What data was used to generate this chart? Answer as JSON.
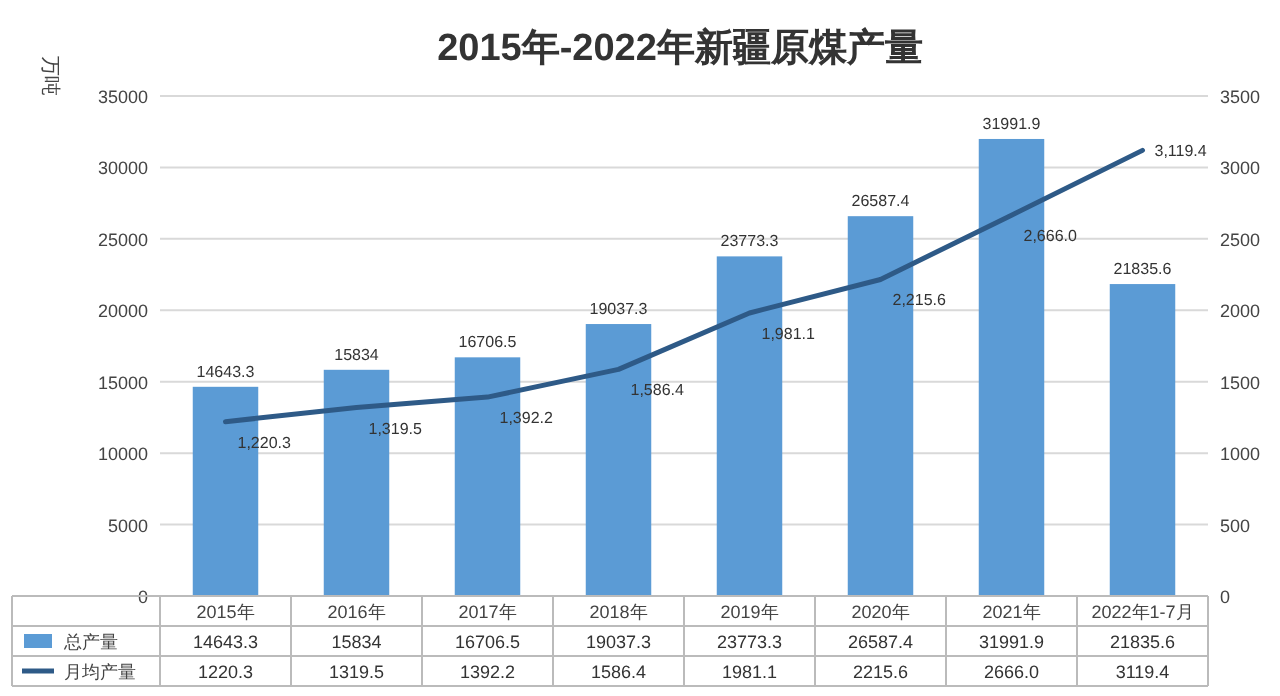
{
  "chart_data": {
    "type": "bar",
    "title": "2015年-2022年新疆原煤产量",
    "ylabel": "万吨",
    "categories": [
      "2015年",
      "2016年",
      "2017年",
      "2018年",
      "2019年",
      "2020年",
      "2021年",
      "2022年1-7月"
    ],
    "series": [
      {
        "name": "总产量",
        "color": "#5b9bd5",
        "values": [
          14643.3,
          15834,
          16706.5,
          19037.3,
          23773.3,
          26587.4,
          31991.9,
          21835.6
        ],
        "value_labels": [
          "14643.3",
          "15834",
          "16706.5",
          "19037.3",
          "23773.3",
          "26587.4",
          "31991.9",
          "21835.6"
        ]
      },
      {
        "name": "月均产量",
        "type": "line",
        "axis": "y2",
        "color": "#2e5a87",
        "values": [
          1220.3,
          1319.5,
          1392.2,
          1586.4,
          1981.1,
          2215.6,
          2666.0,
          3119.4
        ],
        "value_labels": [
          "1,220.3",
          "1,319.5",
          "1,392.2",
          "1,586.4",
          "1,981.1",
          "2,215.6",
          "2,666.0",
          "3,119.4"
        ]
      }
    ],
    "ylim": [
      0,
      35000
    ],
    "yticks": [
      0,
      5000,
      10000,
      15000,
      20000,
      25000,
      30000,
      35000
    ],
    "y2lim": [
      0,
      3500
    ],
    "y2ticks": [
      0,
      500,
      1000,
      1500,
      2000,
      2500,
      3000,
      3500
    ],
    "annotations": [
      "14643.3",
      "15834",
      "16706.5",
      "19037.3",
      "23773.3",
      "26587.4",
      "31991.9",
      "21835.6",
      "1220.3",
      "1319.5",
      "1392.2",
      "1586.4",
      "1981.1",
      "2215.6",
      "2666.0",
      "3119.4"
    ],
    "grid": "y",
    "legend": "bottom"
  }
}
